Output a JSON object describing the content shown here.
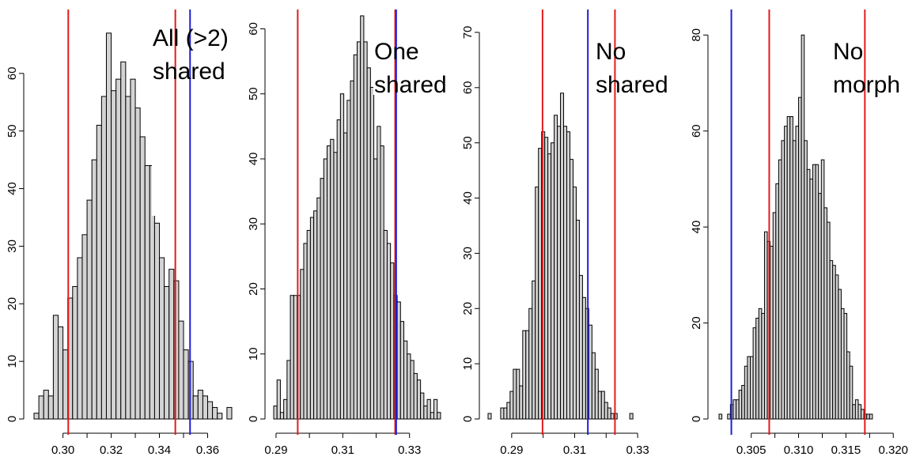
{
  "chart_data": [
    {
      "type": "bar",
      "annotation": [
        "All (>2)",
        "shared"
      ],
      "x_ticks": [
        "0.30",
        "0.32",
        "0.34",
        "0.36"
      ],
      "y_ticks": [
        "0",
        "10",
        "20",
        "30",
        "40",
        "50",
        "60"
      ],
      "xlim": [
        0.288,
        0.37
      ],
      "ylim": [
        0,
        70
      ],
      "bin_start": 0.288,
      "bin_width": 0.002,
      "counts": [
        1,
        4,
        5,
        4,
        18,
        16,
        12,
        21,
        23,
        28,
        32,
        38,
        45,
        51,
        56,
        67,
        57,
        59,
        62,
        56,
        59,
        54,
        49,
        44,
        44,
        34,
        28,
        23,
        26,
        24,
        17,
        12,
        10,
        4,
        5,
        4,
        3,
        2,
        1,
        0,
        2
      ],
      "lines": [
        {
          "x": 0.3022,
          "color": "#e41a1c"
        },
        {
          "x": 0.3466,
          "color": "#e41a1c"
        },
        {
          "x": 0.3527,
          "color": "#1f1fd8"
        }
      ]
    },
    {
      "type": "bar",
      "annotation": [
        "One",
        "shared"
      ],
      "x_ticks": [
        "0.29",
        "0.31",
        "0.33"
      ],
      "y_ticks": [
        "0",
        "10",
        "20",
        "30",
        "40",
        "50",
        "60"
      ],
      "xlim": [
        0.2893,
        0.3405
      ],
      "ylim": [
        0,
        62
      ],
      "bin_start": 0.2893,
      "bin_width": 0.001,
      "counts": [
        2,
        6,
        1,
        3,
        9,
        19,
        19,
        19,
        23,
        27,
        29,
        31,
        32,
        34,
        37,
        40,
        42,
        43,
        41,
        46,
        50,
        44,
        49,
        52,
        56,
        58,
        62,
        58,
        54,
        51,
        40,
        45,
        42,
        29,
        27,
        24,
        19,
        18,
        15,
        12,
        10,
        9,
        7,
        6,
        4,
        2,
        3,
        1,
        3,
        1,
        0
      ],
      "lines": [
        {
          "x": 0.2965,
          "color": "#e41a1c"
        },
        {
          "x": 0.3257,
          "color": "#e41a1c"
        },
        {
          "x": 0.326,
          "color": "#1f1fd8"
        }
      ]
    },
    {
      "type": "bar",
      "annotation": [
        "No",
        "shared"
      ],
      "x_ticks": [
        "0.29",
        "0.31",
        "0.33"
      ],
      "y_ticks": [
        "0",
        "10",
        "20",
        "30",
        "40",
        "50",
        "60",
        "70"
      ],
      "xlim": [
        0.2825,
        0.3443
      ],
      "ylim": [
        0,
        73
      ],
      "bin_start": 0.2825,
      "bin_width": 0.001,
      "counts": [
        1,
        0,
        0,
        0,
        2,
        2,
        3,
        5,
        9,
        9,
        6,
        16,
        16,
        20,
        25,
        42,
        49,
        52,
        51,
        48,
        50,
        55,
        53,
        59,
        53,
        52,
        47,
        42,
        36,
        26,
        22,
        20,
        17,
        12,
        9,
        5,
        5,
        3,
        2,
        1,
        1,
        0,
        0,
        0,
        0,
        1
      ],
      "lines": [
        {
          "x": 0.2998,
          "color": "#e41a1c"
        },
        {
          "x": 0.3142,
          "color": "#1f1fd8"
        },
        {
          "x": 0.3228,
          "color": "#e41a1c"
        }
      ]
    },
    {
      "type": "bar",
      "annotation": [
        "No",
        "morph"
      ],
      "x_ticks": [
        "0.305",
        "0.310",
        "0.315",
        "0.320"
      ],
      "y_ticks": [
        "0",
        "20",
        "40",
        "60",
        "80"
      ],
      "xlim": [
        0.3016,
        0.3224
      ],
      "ylim": [
        0,
        84
      ],
      "bin_start": 0.3016,
      "bin_width": 0.0003,
      "counts": [
        1,
        0,
        0,
        1,
        3,
        4,
        4,
        6,
        7,
        11,
        13,
        13,
        19,
        21,
        23,
        22,
        39,
        37,
        36,
        43,
        49,
        54,
        58,
        61,
        63,
        63,
        58,
        61,
        67,
        80,
        58,
        52,
        50,
        53,
        53,
        47,
        54,
        44,
        41,
        33,
        32,
        30,
        27,
        23,
        22,
        14,
        11,
        3,
        4,
        3,
        2,
        1,
        1,
        1
      ],
      "lines": [
        {
          "x": 0.3029,
          "color": "#1f1fd8"
        },
        {
          "x": 0.3069,
          "color": "#e41a1c"
        },
        {
          "x": 0.317,
          "color": "#e41a1c"
        }
      ]
    }
  ]
}
